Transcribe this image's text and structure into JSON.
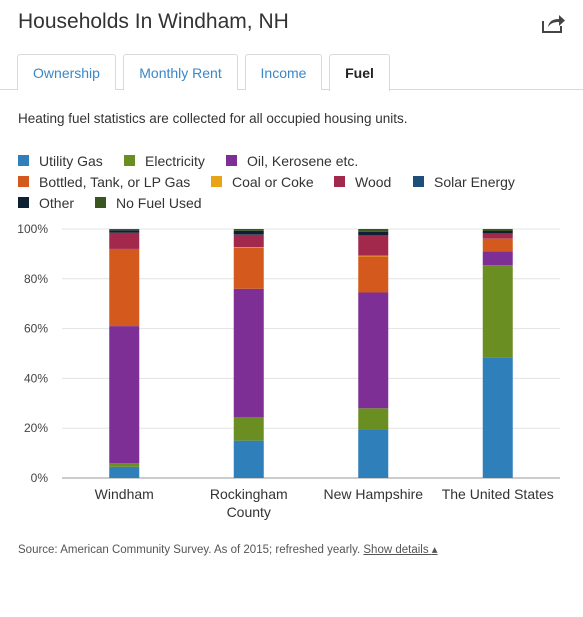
{
  "header": {
    "title": "Households In Windham, NH",
    "share_icon": "share-arrow-icon"
  },
  "tabs": [
    {
      "label": "Ownership",
      "active": false
    },
    {
      "label": "Monthly Rent",
      "active": false
    },
    {
      "label": "Income",
      "active": false
    },
    {
      "label": "Fuel",
      "active": true
    }
  ],
  "description": "Heating fuel statistics are collected for all occupied housing units.",
  "legend": [
    {
      "label": "Utility Gas",
      "color": "#2e7fba"
    },
    {
      "label": "Electricity",
      "color": "#6b8e23"
    },
    {
      "label": "Oil, Kerosene etc.",
      "color": "#7e2f95"
    },
    {
      "label": "Bottled, Tank, or LP Gas",
      "color": "#d35a1c"
    },
    {
      "label": "Coal or Coke",
      "color": "#e8a317"
    },
    {
      "label": "Wood",
      "color": "#a2284c"
    },
    {
      "label": "Solar Energy",
      "color": "#1d4f7a"
    },
    {
      "label": "Other",
      "color": "#0d2133"
    },
    {
      "label": "No Fuel Used",
      "color": "#3a5520"
    }
  ],
  "chart_data": {
    "type": "bar",
    "stacked": true,
    "categories": [
      "Windham",
      "Rockingham County",
      "New Hampshire",
      "The United States"
    ],
    "ylim": [
      0,
      100
    ],
    "yticks": [
      "0%",
      "20%",
      "40%",
      "60%",
      "80%",
      "100%"
    ],
    "grid": true,
    "series": [
      {
        "name": "Utility Gas",
        "values": [
          4.5,
          15,
          19.5,
          48.5
        ]
      },
      {
        "name": "Electricity",
        "values": [
          1.5,
          9.5,
          8.5,
          37
        ]
      },
      {
        "name": "Oil, Kerosene etc.",
        "values": [
          55,
          51.5,
          46.5,
          5.5
        ]
      },
      {
        "name": "Bottled, Tank, or LP Gas",
        "values": [
          31,
          16.5,
          14.5,
          5
        ]
      },
      {
        "name": "Coal or Coke",
        "values": [
          0,
          0.2,
          0.3,
          0.1
        ]
      },
      {
        "name": "Wood",
        "values": [
          6.5,
          5,
          8,
          2
        ]
      },
      {
        "name": "Solar Energy",
        "values": [
          0,
          0.1,
          0.1,
          0.1
        ]
      },
      {
        "name": "Other",
        "values": [
          1,
          1.5,
          1.5,
          1
        ]
      },
      {
        "name": "No Fuel Used",
        "values": [
          0.5,
          0.7,
          1.1,
          0.8
        ]
      }
    ]
  },
  "source": {
    "text": "Source: American Community Survey. As of 2015; refreshed yearly.",
    "link": "Show details",
    "link_arrow": "▴"
  }
}
